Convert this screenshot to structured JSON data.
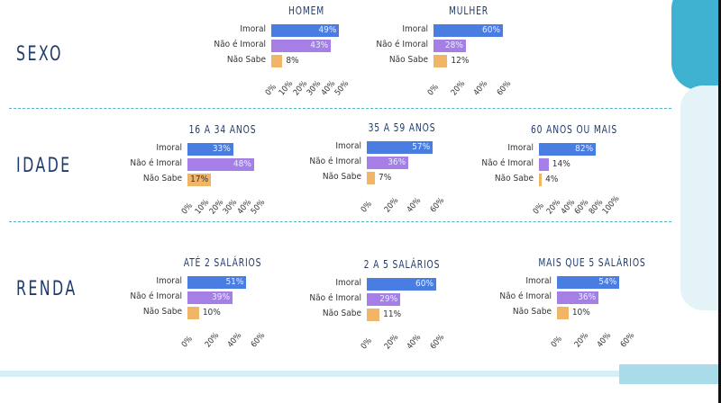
{
  "colors": {
    "imoral": "#4a7de2",
    "nao_imoral": "#a57fe6",
    "nao_sabe": "#f1b567",
    "accent": "#3fb2d2",
    "section": "#1f3b6e"
  },
  "sections": {
    "sexo": "SEXO",
    "idade": "IDADE",
    "renda": "RENDA"
  },
  "chart_data": [
    {
      "type": "bar",
      "orientation": "horizontal",
      "title": "HOMEM",
      "categories": [
        "Imoral",
        "Não é Imoral",
        "Não Sabe"
      ],
      "values": [
        49,
        43,
        8
      ],
      "xlim": [
        0,
        50
      ],
      "xticks": [
        "0%",
        "10%",
        "20%",
        "30%",
        "40%",
        "50%"
      ]
    },
    {
      "type": "bar",
      "orientation": "horizontal",
      "title": "MULHER",
      "categories": [
        "Imoral",
        "Não é Imoral",
        "Não Sabe"
      ],
      "values": [
        60,
        28,
        12
      ],
      "xlim": [
        0,
        60
      ],
      "xticks": [
        "0%",
        "20%",
        "40%",
        "60%"
      ]
    },
    {
      "type": "bar",
      "orientation": "horizontal",
      "title": "16 A 34 ANOS",
      "categories": [
        "Imoral",
        "Não é Imoral",
        "Não Sabe"
      ],
      "values": [
        33,
        48,
        17
      ],
      "xlim": [
        0,
        50
      ],
      "xticks": [
        "0%",
        "10%",
        "20%",
        "30%",
        "40%",
        "50%"
      ]
    },
    {
      "type": "bar",
      "orientation": "horizontal",
      "title": "35 A 59 ANOS",
      "categories": [
        "Imoral",
        "Não é Imoral",
        "Não Sabe"
      ],
      "values": [
        57,
        36,
        7
      ],
      "xlim": [
        0,
        60
      ],
      "xticks": [
        "0%",
        "20%",
        "40%",
        "60%"
      ]
    },
    {
      "type": "bar",
      "orientation": "horizontal",
      "title": "60 ANOS OU MAIS",
      "categories": [
        "Imoral",
        "Não é Imoral",
        "Não Sabe"
      ],
      "values": [
        82,
        14,
        4
      ],
      "xlim": [
        0,
        100
      ],
      "xticks": [
        "0%",
        "20%",
        "40%",
        "60%",
        "80%",
        "100%"
      ]
    },
    {
      "type": "bar",
      "orientation": "horizontal",
      "title": "ATÉ 2 SALÁRIOS",
      "categories": [
        "Imoral",
        "Não é Imoral",
        "Não Sabe"
      ],
      "values": [
        51,
        39,
        10
      ],
      "xlim": [
        0,
        60
      ],
      "xticks": [
        "0%",
        "20%",
        "40%",
        "60%"
      ]
    },
    {
      "type": "bar",
      "orientation": "horizontal",
      "title": "2 A 5 SALÁRIOS",
      "categories": [
        "Imoral",
        "Não é Imoral",
        "Não Sabe"
      ],
      "values": [
        60,
        29,
        11
      ],
      "xlim": [
        0,
        60
      ],
      "xticks": [
        "0%",
        "20%",
        "40%",
        "60%"
      ]
    },
    {
      "type": "bar",
      "orientation": "horizontal",
      "title": "MAIS QUE 5 SALÁRIOS",
      "categories": [
        "Imoral",
        "Não é Imoral",
        "Não Sabe"
      ],
      "values": [
        54,
        36,
        10
      ],
      "xlim": [
        0,
        60
      ],
      "xticks": [
        "0%",
        "20%",
        "40%",
        "60%"
      ]
    }
  ]
}
